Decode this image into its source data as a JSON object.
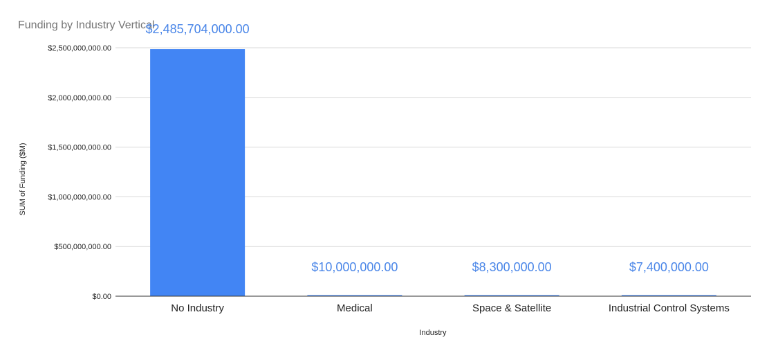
{
  "chart_data": {
    "type": "bar",
    "title": "Funding by Industry Vertical",
    "xlabel": "Industry",
    "ylabel": "SUM of Funding ($M)",
    "categories": [
      "No Industry",
      "Medical",
      "Space & Satellite",
      "Industrial Control Systems"
    ],
    "values": [
      2485704000,
      10000000,
      8300000,
      7400000
    ],
    "data_labels": [
      "$2,485,704,000.00",
      "$10,000,000.00",
      "$8,300,000.00",
      "$7,400,000.00"
    ],
    "ylim": [
      0,
      2500000000
    ],
    "yticks": [
      0,
      500000000,
      1000000000,
      1500000000,
      2000000000,
      2500000000
    ],
    "ytick_labels": [
      "$0.00",
      "$500,000,000.00",
      "$1,000,000,000.00",
      "$1,500,000,000.00",
      "$2,000,000,000.00",
      "$2,500,000,000.00"
    ],
    "grid": true,
    "legend": "none",
    "colors": {
      "bar": "#4285f4",
      "data_label": "#4a86e8",
      "title": "#757575"
    }
  }
}
